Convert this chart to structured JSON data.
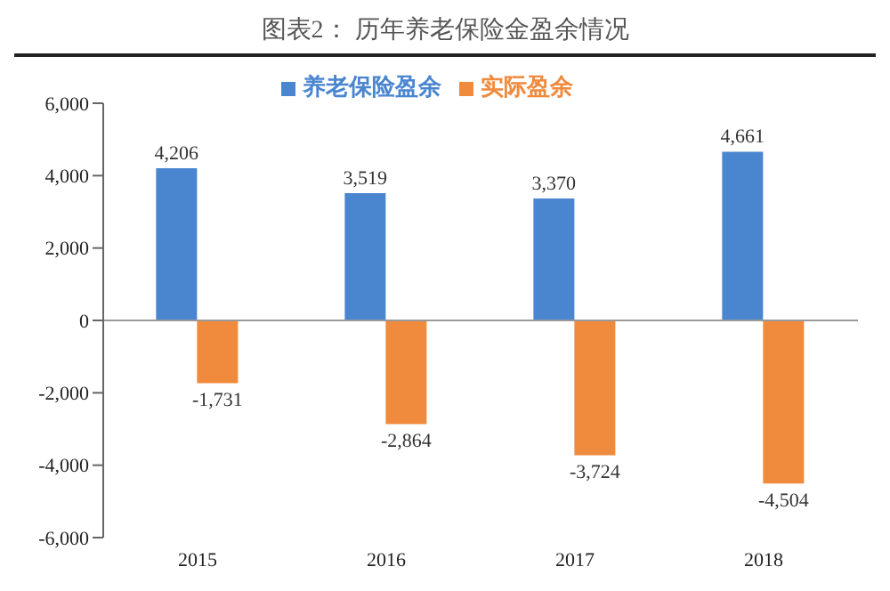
{
  "chart_data": {
    "type": "bar",
    "title": "图表2： 历年养老保险金盈余情况",
    "categories": [
      "2015",
      "2016",
      "2017",
      "2018"
    ],
    "series": [
      {
        "name": "养老保险盈余",
        "color": "#4a86d0",
        "values": [
          4206,
          3519,
          3370,
          4661
        ],
        "value_labels": [
          "4,206",
          "3,519",
          "3,370",
          "4,661"
        ]
      },
      {
        "name": "实际盈余",
        "color": "#f08a3c",
        "values": [
          -1731,
          -2864,
          -3724,
          -4504
        ],
        "value_labels": [
          "-1,731",
          "-2,864",
          "-3,724",
          "-4,504"
        ]
      }
    ],
    "ylim": [
      -6000,
      6000
    ],
    "yticks": [
      {
        "value": -6000,
        "label": "-6,000"
      },
      {
        "value": -4000,
        "label": "-4,000"
      },
      {
        "value": -2000,
        "label": "-2,000"
      },
      0,
      {
        "value": 2000,
        "label": "2,000"
      },
      {
        "value": 4000,
        "label": "4,000"
      },
      {
        "value": 6000,
        "label": "6,000"
      }
    ],
    "ref_lines": [
      {
        "axis": "y",
        "value": 0,
        "color": "#999999"
      }
    ],
    "legend": "top"
  }
}
